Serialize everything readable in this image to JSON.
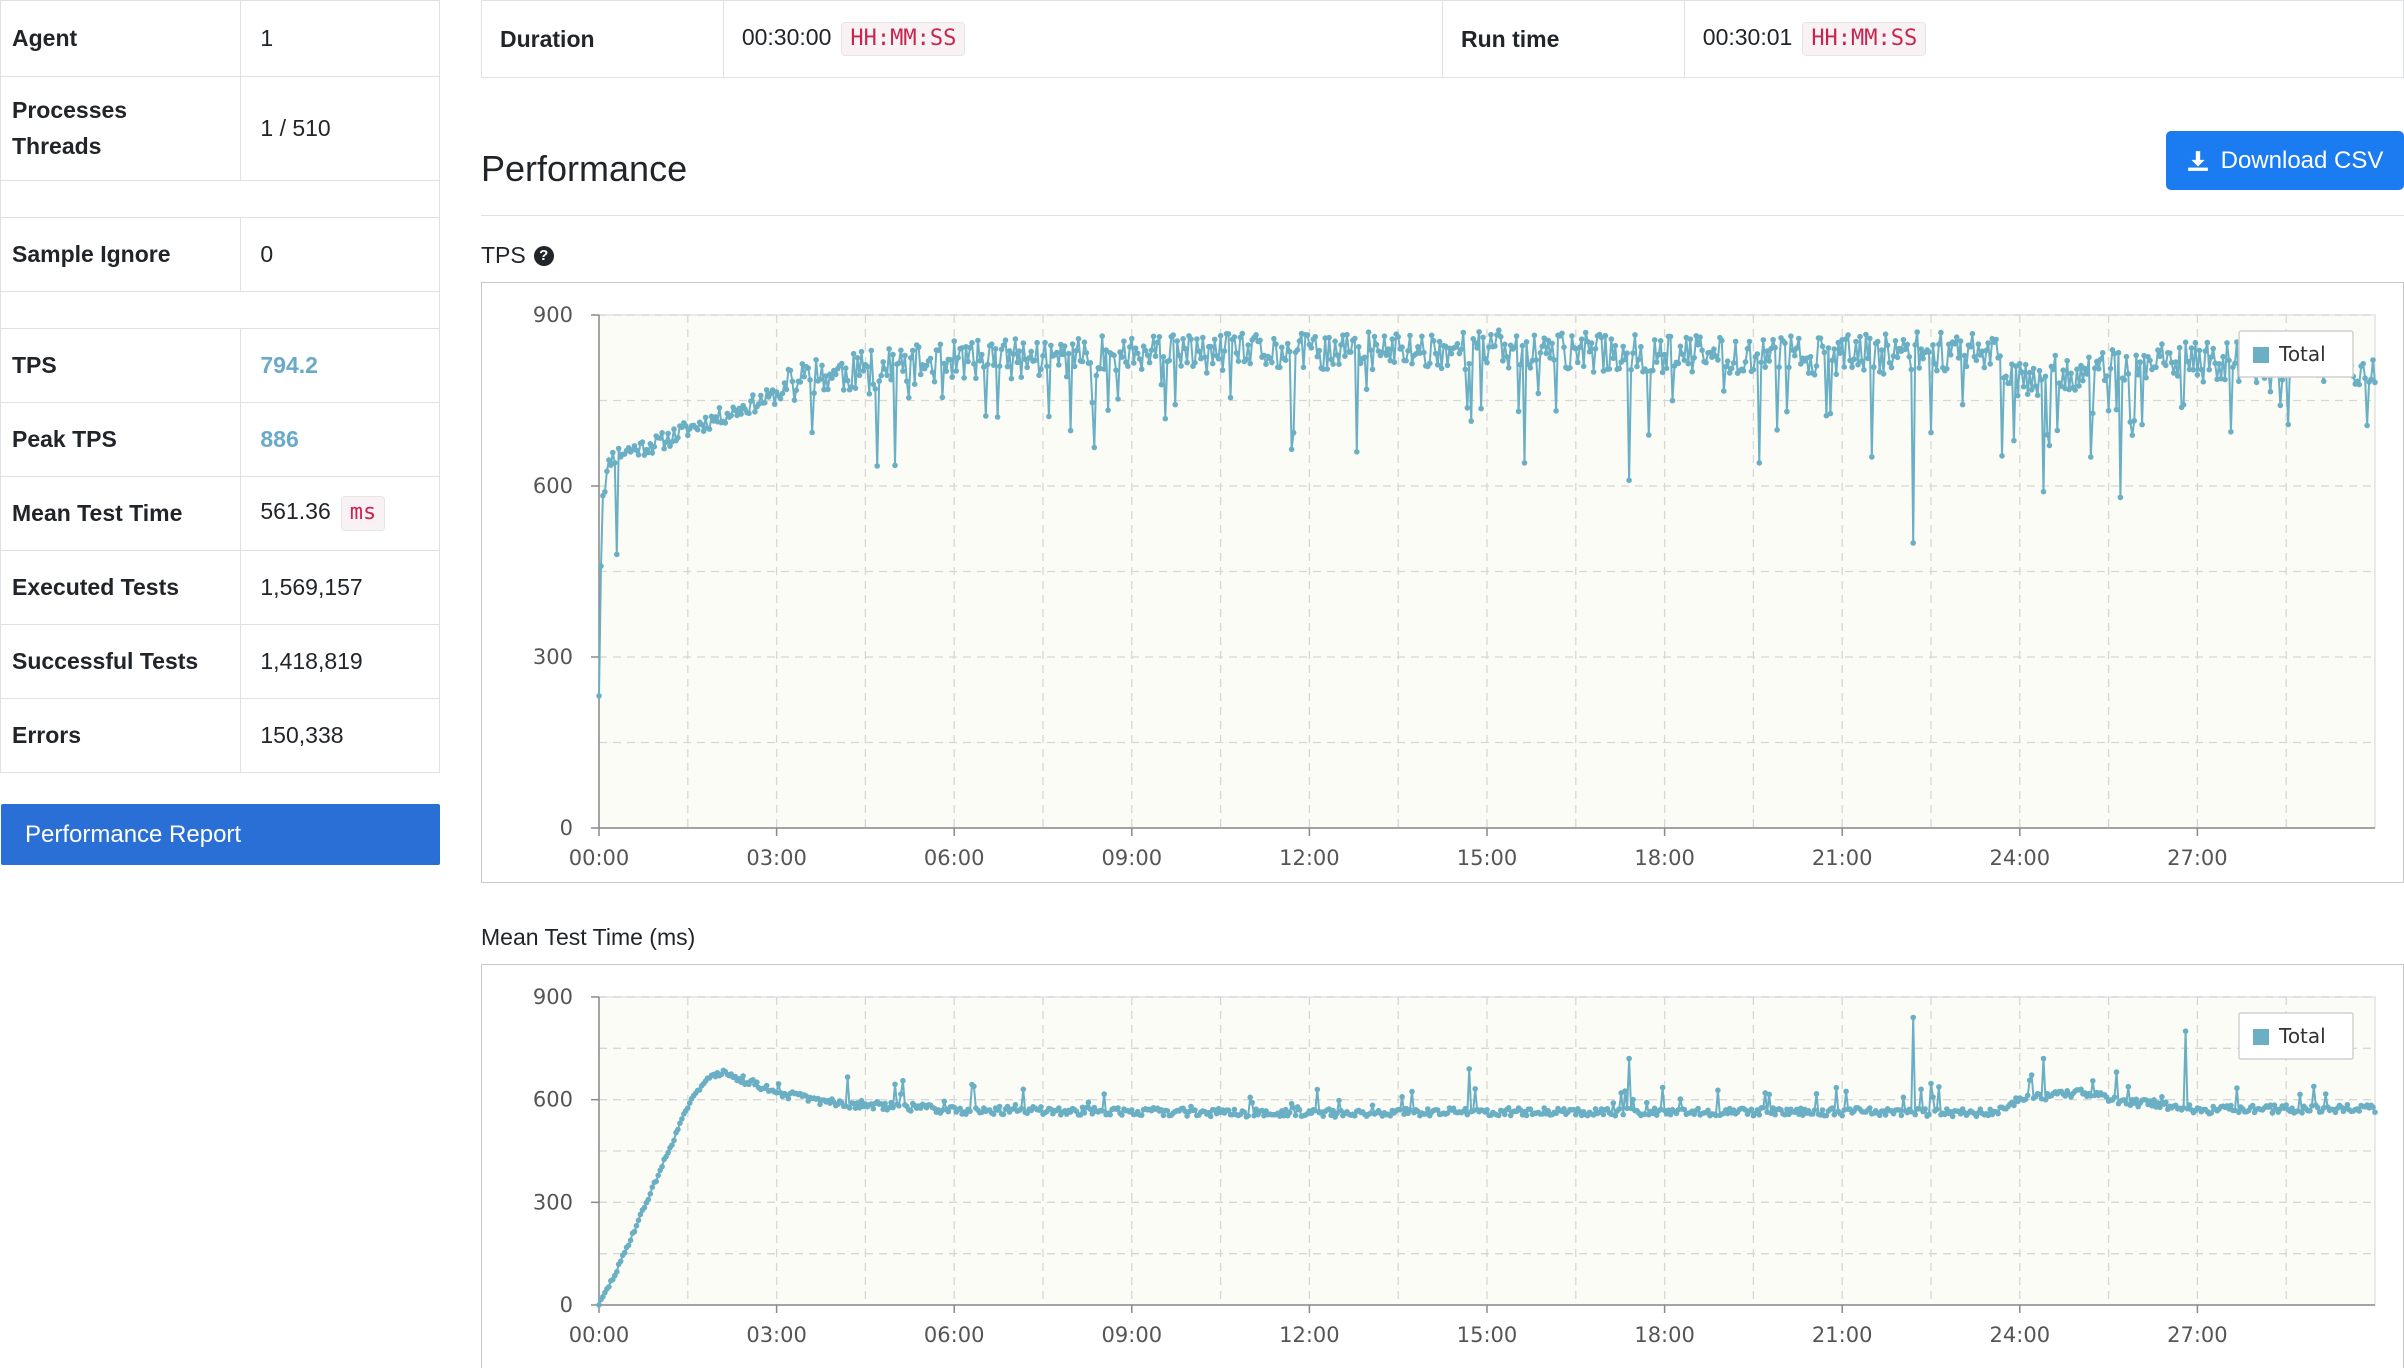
{
  "summary": {
    "rows": [
      {
        "label": "Agent",
        "value": "1"
      },
      {
        "label": "Processes\nThreads",
        "value": "1 / 510"
      },
      {
        "label": "Sample Ignore",
        "value": "0"
      },
      {
        "label": "TPS",
        "value": "794.2"
      },
      {
        "label": "Peak TPS",
        "value": "886"
      },
      {
        "label": "Mean Test Time",
        "value": "561.36",
        "unit": "ms"
      },
      {
        "label": "Executed Tests",
        "value": "1,569,157"
      },
      {
        "label": "Successful Tests",
        "value": "1,418,819"
      },
      {
        "label": "Errors",
        "value": "150,338"
      }
    ]
  },
  "report_button": "Performance Report",
  "duration": {
    "duration_label": "Duration",
    "duration_value": "00:30:00",
    "duration_format": "HH:MM:SS",
    "runtime_label": "Run time",
    "runtime_value": "00:30:01",
    "runtime_format": "HH:MM:SS"
  },
  "section_title": "Performance",
  "download_button": "Download CSV",
  "icons": {
    "download": "download-icon",
    "help": "question-circle-icon"
  },
  "colors": {
    "series": "#6aafc4",
    "plot_bg": "#fcfcf6",
    "accent": "#2a6fd6"
  },
  "chart_data": [
    {
      "id": "tps",
      "title": "TPS",
      "type": "line",
      "x_ticks": [
        "00:00",
        "03:00",
        "06:00",
        "09:00",
        "12:00",
        "15:00",
        "18:00",
        "21:00",
        "24:00",
        "27:00"
      ],
      "y_ticks": [
        0,
        300,
        600,
        900
      ],
      "xlim_minutes": [
        0,
        30
      ],
      "ylim": [
        0,
        900
      ],
      "legend": [
        "Total"
      ],
      "legend_position": "top-right",
      "grid": true,
      "series": [
        {
          "name": "Total",
          "segments": [
            {
              "x": [
                0,
                0.05,
                0.2,
                0.4,
                0.6,
                0.8,
                1.0,
                1.5,
                2.0,
                2.5,
                3.0,
                3.5
              ],
              "y": [
                240,
                580,
                650,
                660,
                665,
                670,
                675,
                700,
                720,
                740,
                760,
                790
              ]
            },
            {
              "x": [
                3.5,
                6.0,
                9.0,
                12.0,
                15.0,
                18.0,
                21.0,
                23.5
              ],
              "y": [
                790,
                820,
                830,
                835,
                840,
                830,
                830,
                840
              ]
            },
            {
              "x": [
                23.5,
                24.0,
                27.0,
                30.0
              ],
              "y": [
                840,
                790,
                820,
                810
              ]
            }
          ],
          "dips": [
            {
              "x": 0.3,
              "y": 480
            },
            {
              "x": 4.7,
              "y": 635
            },
            {
              "x": 12.8,
              "y": 660
            },
            {
              "x": 17.4,
              "y": 610
            },
            {
              "x": 22.2,
              "y": 500
            },
            {
              "x": 24.4,
              "y": 590
            },
            {
              "x": 25.7,
              "y": 580
            }
          ]
        }
      ]
    },
    {
      "id": "mtt",
      "title": "Mean Test Time (ms)",
      "type": "line",
      "x_ticks": [
        "00:00",
        "03:00",
        "06:00",
        "09:00",
        "12:00",
        "15:00",
        "18:00",
        "21:00",
        "24:00",
        "27:00"
      ],
      "y_ticks": [
        0,
        300,
        600,
        900
      ],
      "xlim_minutes": [
        0,
        30
      ],
      "ylim": [
        0,
        900
      ],
      "legend": [
        "Total"
      ],
      "legend_position": "top-right",
      "grid": true,
      "series": [
        {
          "name": "Total",
          "segments": [
            {
              "x": [
                0,
                0.3,
                0.6,
                0.9,
                1.2,
                1.5,
                1.8,
                2.1
              ],
              "y": [
                0,
                100,
                220,
                340,
                460,
                580,
                660,
                680
              ]
            },
            {
              "x": [
                2.1,
                3.0,
                4.0,
                6.0,
                9.0,
                12.0,
                15.0,
                18.0,
                21.0,
                23.5
              ],
              "y": [
                680,
                620,
                590,
                570,
                565,
                560,
                565,
                565,
                565,
                560
              ]
            },
            {
              "x": [
                23.5,
                24.0,
                25.0,
                26.0,
                27.0,
                30.0
              ],
              "y": [
                560,
                600,
                620,
                590,
                570,
                575
              ]
            }
          ],
          "spikes": [
            {
              "x": 22.2,
              "y": 840
            },
            {
              "x": 17.4,
              "y": 720
            },
            {
              "x": 26.8,
              "y": 800
            },
            {
              "x": 14.7,
              "y": 690
            },
            {
              "x": 24.4,
              "y": 720
            }
          ]
        }
      ]
    }
  ]
}
